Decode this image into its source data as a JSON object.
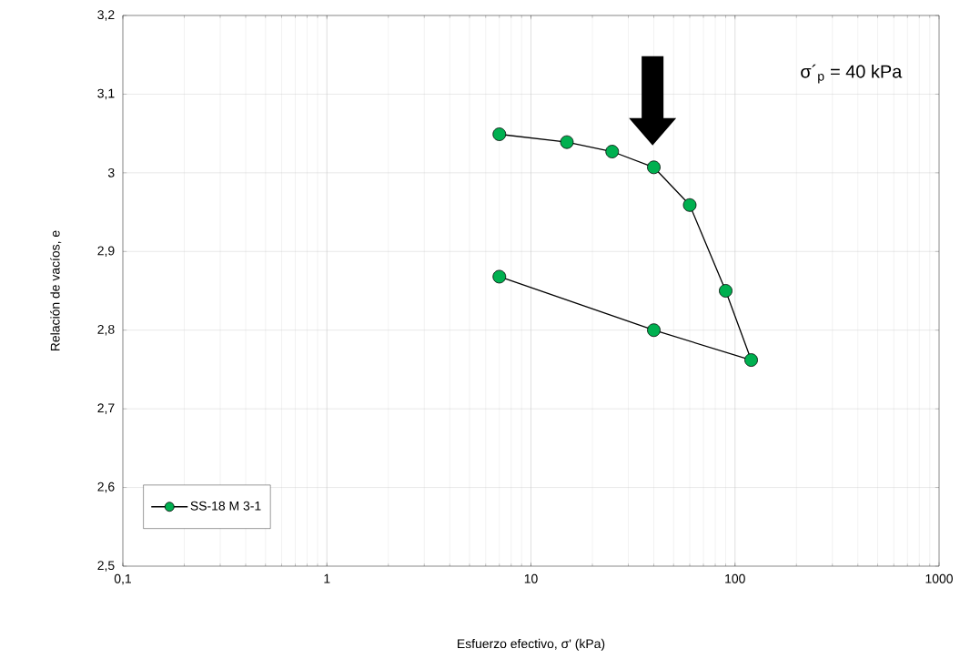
{
  "chart_data": {
    "type": "line",
    "xlabel": "Esfuerzo efectivo, σ' (kPa)",
    "ylabel": "Relación de vacíos, e",
    "log": "x",
    "grid": true,
    "legend": "bottom left",
    "marker": "circle",
    "line_style": "solid",
    "xlim": [
      0.1,
      1000
    ],
    "ylim": [
      2.5,
      3.2
    ],
    "xticks": [
      {
        "value": 0.1,
        "label": "0,1"
      },
      1,
      10,
      100,
      1000
    ],
    "yticks": [
      {
        "value": 2.5,
        "label": "2,5"
      },
      {
        "value": 2.6,
        "label": "2,6"
      },
      {
        "value": 2.7,
        "label": "2,7"
      },
      {
        "value": 2.8,
        "label": "2,8"
      },
      {
        "value": 2.9,
        "label": "2,9"
      },
      3,
      {
        "value": 3.1,
        "label": "3,1"
      },
      {
        "value": 3.2,
        "label": "3,2"
      }
    ],
    "annotations": [
      "σ´$_{p}$ =  40 kPa"
    ],
    "series": [
      {
        "name": "SS-18 M 3-1",
        "color": "#00b050",
        "x": [
          7,
          15,
          25,
          40,
          60,
          90,
          120,
          40,
          7
        ],
        "values": [
          3.049,
          3.039,
          3.027,
          3.007,
          2.959,
          2.85,
          2.762,
          2.8,
          2.868
        ]
      }
    ]
  }
}
